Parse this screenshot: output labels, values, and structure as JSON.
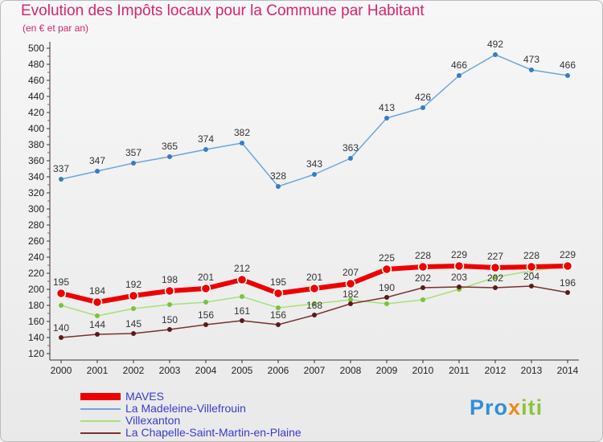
{
  "header": {
    "title": "Evolution des Impôts locaux pour la Commune par Habitant",
    "subtitle": "(en € et par an)"
  },
  "logo": {
    "text": "Proxiti",
    "colors": [
      "#2f8fd8",
      "#f08a1c",
      "#8cc43c"
    ]
  },
  "chart_data": {
    "type": "line",
    "title": "Evolution des Impôts locaux pour la Commune par Habitant",
    "subtitle": "(en € et par an)",
    "xlabel": "",
    "ylabel": "",
    "x": [
      "2000",
      "2001",
      "2002",
      "2003",
      "2004",
      "2005",
      "2006",
      "2007",
      "2008",
      "2009",
      "2010",
      "2011",
      "2012",
      "2013",
      "2014"
    ],
    "ylim": [
      120,
      500
    ],
    "yticks": [
      120,
      140,
      160,
      180,
      200,
      220,
      240,
      260,
      280,
      300,
      320,
      340,
      360,
      380,
      400,
      420,
      440,
      460,
      480,
      500
    ],
    "grid": false,
    "legend": "bottom-left",
    "series": [
      {
        "name": "MAVES",
        "color": "#ee0000",
        "values": [
          195,
          184,
          192,
          198,
          201,
          212,
          195,
          201,
          207,
          225,
          228,
          229,
          227,
          228,
          229
        ],
        "show_labels": true
      },
      {
        "name": "La Madeleine-Villefrouin",
        "color": "#6ea6d8",
        "marker": "#3a7cc0",
        "values": [
          337,
          347,
          357,
          365,
          374,
          382,
          328,
          343,
          363,
          413,
          426,
          466,
          492,
          473,
          466
        ],
        "show_labels": true
      },
      {
        "name": "Villexanton",
        "color": "#a8e07a",
        "marker": "#7cc040",
        "values": [
          180,
          167,
          176,
          181,
          184,
          191,
          177,
          182,
          187,
          182,
          187,
          200,
          215,
          223,
          229
        ],
        "show_labels": false
      },
      {
        "name": "La Chapelle-Saint-Martin-en-Plaine",
        "color": "#7a3030",
        "marker": "#5a1a1a",
        "values": [
          140,
          144,
          145,
          150,
          156,
          161,
          156,
          168,
          182,
          190,
          202,
          203,
          202,
          204,
          196
        ],
        "show_labels": true
      }
    ]
  }
}
